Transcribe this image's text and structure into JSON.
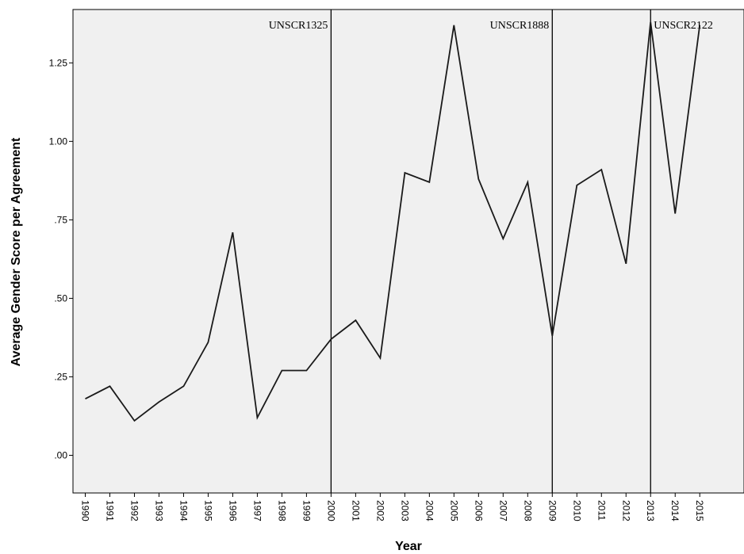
{
  "chart_data": {
    "type": "line",
    "xlabel": "Year",
    "ylabel": "Average Gender Score per Agreement",
    "ylim": [
      -0.12,
      1.42
    ],
    "y_ticks": [
      ".00",
      ".25",
      ".50",
      ".75",
      "1.00",
      "1.25"
    ],
    "y_tick_values": [
      0,
      0.25,
      0.5,
      0.75,
      1.0,
      1.25
    ],
    "x_ticks": [
      "1990",
      "1991",
      "1992",
      "1993",
      "1994",
      "1995",
      "1996",
      "1997",
      "1998",
      "1999",
      "2000",
      "2001",
      "2002",
      "2003",
      "2004",
      "2005",
      "2006",
      "2007",
      "2008",
      "2009",
      "2010",
      "2011",
      "2012",
      "2013",
      "2014",
      "2015"
    ],
    "grid": false,
    "legend": "none",
    "background": "#f0f0f0",
    "line_color": "#1a1a1a",
    "series": [
      {
        "x": [
          1990,
          1991,
          1992,
          1993,
          1994,
          1995,
          1996,
          1997,
          1998,
          1999,
          2000,
          2001,
          2002,
          2003,
          2004,
          2005,
          2006,
          2007,
          2008,
          2009,
          2010,
          2011,
          2012,
          2013,
          2014,
          2015
        ],
        "values": [
          0.18,
          0.22,
          0.11,
          0.17,
          0.22,
          0.36,
          0.71,
          0.12,
          0.27,
          0.27,
          0.37,
          0.43,
          0.31,
          0.9,
          0.87,
          1.37,
          0.88,
          0.69,
          0.87,
          0.38,
          0.86,
          0.91,
          0.61,
          1.38,
          0.77,
          1.37
        ]
      }
    ],
    "annotations": [
      {
        "text": "UNSCR1325",
        "x": 2000
      },
      {
        "text": "UNSCR1888",
        "x": 2009
      },
      {
        "text": "UNSCR2122",
        "x": 2013
      }
    ]
  }
}
